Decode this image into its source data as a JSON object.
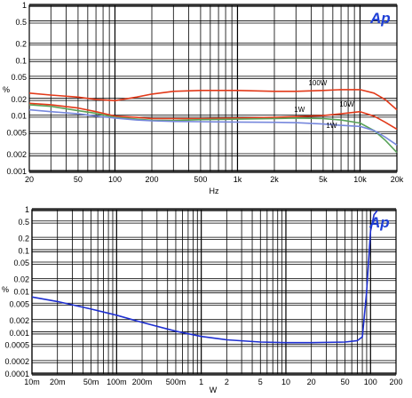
{
  "charts": [
    {
      "id": "top",
      "logo": "Ap",
      "ylabel": "%",
      "xlabel": "Hz",
      "x_ticks": [
        {
          "value": 20,
          "label": "20"
        },
        {
          "value": 50,
          "label": "50"
        },
        {
          "value": 100,
          "label": "100"
        },
        {
          "value": 200,
          "label": "200"
        },
        {
          "value": 500,
          "label": "500"
        },
        {
          "value": 1000,
          "label": "1k"
        },
        {
          "value": 2000,
          "label": "2k"
        },
        {
          "value": 5000,
          "label": "5k"
        },
        {
          "value": 10000,
          "label": "10k"
        },
        {
          "value": 20000,
          "label": "20k"
        }
      ],
      "y_ticks": [
        {
          "value": 1,
          "label": "1"
        },
        {
          "value": 0.5,
          "label": "0.5"
        },
        {
          "value": 0.2,
          "label": "0.2"
        },
        {
          "value": 0.1,
          "label": "0.1"
        },
        {
          "value": 0.05,
          "label": "0.05"
        },
        {
          "value": 0.02,
          "label": "0.02"
        },
        {
          "value": 0.01,
          "label": "0.01"
        },
        {
          "value": 0.005,
          "label": "0.005"
        },
        {
          "value": 0.002,
          "label": "0.002"
        },
        {
          "value": 0.001,
          "label": "0.001"
        }
      ],
      "series_labels": [
        {
          "text": "100W",
          "x": 3800,
          "y": 0.036,
          "color": "#e23a1a"
        },
        {
          "text": "10W",
          "x": 6800,
          "y": 0.0148,
          "color": "#e23a1a"
        },
        {
          "text": "1W",
          "x": 2900,
          "y": 0.0118,
          "color": "#5aa35a"
        },
        {
          "text": "1W",
          "x": 5300,
          "y": 0.0061,
          "color": "#7788dd"
        }
      ]
    },
    {
      "id": "bottom",
      "logo": "Ap",
      "ylabel": "%",
      "xlabel": "W",
      "x_ticks": [
        {
          "value": 0.01,
          "label": "10m"
        },
        {
          "value": 0.02,
          "label": "20m"
        },
        {
          "value": 0.05,
          "label": "50m"
        },
        {
          "value": 0.1,
          "label": "100m"
        },
        {
          "value": 0.2,
          "label": "200m"
        },
        {
          "value": 0.5,
          "label": "500m"
        },
        {
          "value": 1,
          "label": "1"
        },
        {
          "value": 2,
          "label": "2"
        },
        {
          "value": 5,
          "label": "5"
        },
        {
          "value": 10,
          "label": "10"
        },
        {
          "value": 20,
          "label": "20"
        },
        {
          "value": 50,
          "label": "50"
        },
        {
          "value": 100,
          "label": "100"
        },
        {
          "value": 200,
          "label": "200"
        }
      ],
      "y_ticks": [
        {
          "value": 1,
          "label": "1"
        },
        {
          "value": 0.5,
          "label": "0.5"
        },
        {
          "value": 0.2,
          "label": "0.2"
        },
        {
          "value": 0.1,
          "label": "0.1"
        },
        {
          "value": 0.05,
          "label": "0.05"
        },
        {
          "value": 0.02,
          "label": "0.02"
        },
        {
          "value": 0.01,
          "label": "0.01"
        },
        {
          "value": 0.005,
          "label": "0.005"
        },
        {
          "value": 0.002,
          "label": "0.002"
        },
        {
          "value": 0.001,
          "label": "0.001"
        },
        {
          "value": 0.0005,
          "label": "0.0005"
        },
        {
          "value": 0.0002,
          "label": "0.0002"
        },
        {
          "value": 0.0001,
          "label": "0.0001"
        }
      ],
      "series_labels": []
    }
  ],
  "chart_data": [
    {
      "type": "line",
      "title": "",
      "xlabel": "Hz",
      "ylabel": "%",
      "x_scale": "log",
      "y_scale": "log",
      "xlim": [
        20,
        20000
      ],
      "ylim": [
        0.001,
        1
      ],
      "grid": true,
      "series": [
        {
          "name": "100W",
          "color": "#e23a1a",
          "x": [
            20,
            30,
            50,
            70,
            100,
            150,
            200,
            300,
            500,
            1000,
            2000,
            3000,
            5000,
            7000,
            10000,
            13000,
            16000,
            20000
          ],
          "y": [
            0.026,
            0.024,
            0.022,
            0.02,
            0.019,
            0.022,
            0.025,
            0.028,
            0.029,
            0.029,
            0.028,
            0.028,
            0.029,
            0.03,
            0.03,
            0.026,
            0.02,
            0.013
          ]
        },
        {
          "name": "10W",
          "color": "#e23a1a",
          "x": [
            20,
            30,
            50,
            70,
            100,
            150,
            200,
            300,
            500,
            1000,
            2000,
            3000,
            5000,
            7000,
            10000,
            13000,
            16000,
            20000
          ],
          "y": [
            0.017,
            0.016,
            0.014,
            0.012,
            0.01,
            0.0095,
            0.009,
            0.009,
            0.009,
            0.0092,
            0.0095,
            0.0098,
            0.0102,
            0.011,
            0.012,
            0.01,
            0.0078,
            0.0058
          ]
        },
        {
          "name": "1W",
          "color": "#5aa35a",
          "x": [
            20,
            30,
            50,
            70,
            100,
            150,
            200,
            300,
            500,
            1000,
            2000,
            3000,
            5000,
            7000,
            10000,
            13000,
            16000,
            20000
          ],
          "y": [
            0.016,
            0.015,
            0.0125,
            0.0112,
            0.0095,
            0.0088,
            0.0084,
            0.0083,
            0.0086,
            0.0088,
            0.009,
            0.0092,
            0.009,
            0.0085,
            0.0075,
            0.0055,
            0.0037,
            0.0022
          ]
        },
        {
          "name": "1W",
          "color": "#7788dd",
          "x": [
            20,
            30,
            50,
            70,
            100,
            150,
            200,
            300,
            500,
            1000,
            2000,
            3000,
            5000,
            7000,
            10000,
            13000,
            16000,
            20000
          ],
          "y": [
            0.013,
            0.012,
            0.011,
            0.01,
            0.0092,
            0.0085,
            0.0082,
            0.008,
            0.0079,
            0.0078,
            0.0077,
            0.0076,
            0.0072,
            0.0068,
            0.0065,
            0.0055,
            0.0042,
            0.003
          ]
        }
      ]
    },
    {
      "type": "line",
      "title": "",
      "xlabel": "W",
      "ylabel": "%",
      "x_scale": "log",
      "y_scale": "log",
      "xlim": [
        0.01,
        200
      ],
      "ylim": [
        0.0001,
        1
      ],
      "grid": true,
      "series": [
        {
          "name": "",
          "color": "#1e2fd0",
          "x": [
            0.01,
            0.02,
            0.05,
            0.1,
            0.2,
            0.5,
            1,
            2,
            5,
            10,
            20,
            50,
            70,
            80,
            90,
            100,
            110,
            120
          ],
          "y": [
            0.0075,
            0.0058,
            0.0038,
            0.0027,
            0.0018,
            0.0011,
            0.00082,
            0.00068,
            0.0006,
            0.00058,
            0.00058,
            0.0006,
            0.00065,
            0.0008,
            0.01,
            0.3,
            0.75,
            0.95
          ]
        }
      ]
    }
  ]
}
